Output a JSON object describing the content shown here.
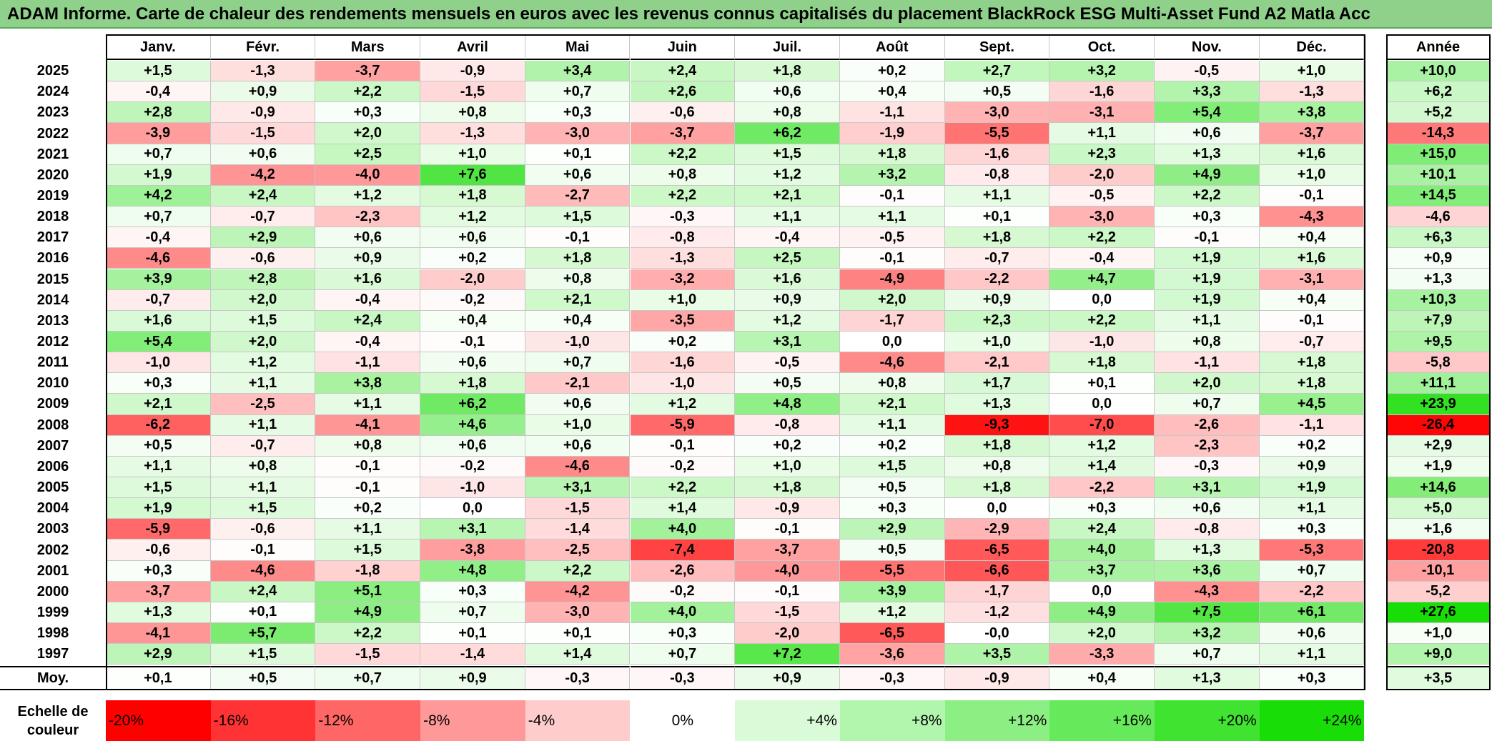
{
  "title": "ADAM Informe. Carte de chaleur des rendements mensuels en euros avec les revenus connus capitalisés du placement BlackRock ESG Multi-Asset Fund A2 Matla Acc",
  "chart_data": {
    "type": "heatmap",
    "title": "ADAM Informe. Carte de chaleur des rendements mensuels en euros avec les revenus connus capitalisés du placement BlackRock ESG Multi-Asset Fund A2 Matla Acc",
    "columns": [
      "Janv.",
      "Févr.",
      "Mars",
      "Avril",
      "Mai",
      "Juin",
      "Juil.",
      "Août",
      "Sept.",
      "Oct.",
      "Nov.",
      "Déc."
    ],
    "year_column_label": "Année",
    "rows": [
      {
        "year": "2025",
        "values": [
          "+1,5",
          "-1,3",
          "-3,7",
          "-0,9",
          "+3,4",
          "+2,4",
          "+1,8",
          "+0,2",
          "+2,7",
          "+3,2",
          "-0,5",
          "+1,0"
        ],
        "annual": "+10,0"
      },
      {
        "year": "2024",
        "values": [
          "-0,4",
          "+0,9",
          "+2,2",
          "-1,5",
          "+0,7",
          "+2,6",
          "+0,6",
          "+0,4",
          "+0,5",
          "-1,6",
          "+3,3",
          "-1,3"
        ],
        "annual": "+6,2"
      },
      {
        "year": "2023",
        "values": [
          "+2,8",
          "-0,9",
          "+0,3",
          "+0,8",
          "+0,3",
          "-0,6",
          "+0,8",
          "-1,1",
          "-3,0",
          "-3,1",
          "+5,4",
          "+3,8"
        ],
        "annual": "+5,2"
      },
      {
        "year": "2022",
        "values": [
          "-3,9",
          "-1,5",
          "+2,0",
          "-1,3",
          "-3,0",
          "-3,7",
          "+6,2",
          "-1,9",
          "-5,5",
          "+1,1",
          "+0,6",
          "-3,7"
        ],
        "annual": "-14,3"
      },
      {
        "year": "2021",
        "values": [
          "+0,7",
          "+0,6",
          "+2,5",
          "+1,0",
          "+0,1",
          "+2,2",
          "+1,5",
          "+1,8",
          "-1,6",
          "+2,3",
          "+1,3",
          "+1,6"
        ],
        "annual": "+15,0"
      },
      {
        "year": "2020",
        "values": [
          "+1,9",
          "-4,2",
          "-4,0",
          "+7,6",
          "+0,6",
          "+0,8",
          "+1,2",
          "+3,2",
          "-0,8",
          "-2,0",
          "+4,9",
          "+1,0"
        ],
        "annual": "+10,1"
      },
      {
        "year": "2019",
        "values": [
          "+4,2",
          "+2,4",
          "+1,2",
          "+1,8",
          "-2,7",
          "+2,2",
          "+2,1",
          "-0,1",
          "+1,1",
          "-0,5",
          "+2,2",
          "-0,1"
        ],
        "annual": "+14,5"
      },
      {
        "year": "2018",
        "values": [
          "+0,7",
          "-0,7",
          "-2,3",
          "+1,2",
          "+1,5",
          "-0,3",
          "+1,1",
          "+1,1",
          "+0,1",
          "-3,0",
          "+0,3",
          "-4,3"
        ],
        "annual": "-4,6"
      },
      {
        "year": "2017",
        "values": [
          "-0,4",
          "+2,9",
          "+0,6",
          "+0,6",
          "-0,1",
          "-0,8",
          "-0,4",
          "-0,5",
          "+1,8",
          "+2,2",
          "-0,1",
          "+0,4"
        ],
        "annual": "+6,3"
      },
      {
        "year": "2016",
        "values": [
          "-4,6",
          "-0,6",
          "+0,9",
          "+0,2",
          "+1,8",
          "-1,3",
          "+2,5",
          "-0,1",
          "-0,7",
          "-0,4",
          "+1,9",
          "+1,6"
        ],
        "annual": "+0,9"
      },
      {
        "year": "2015",
        "values": [
          "+3,9",
          "+2,8",
          "+1,6",
          "-2,0",
          "+0,8",
          "-3,2",
          "+1,6",
          "-4,9",
          "-2,2",
          "+4,7",
          "+1,9",
          "-3,1"
        ],
        "annual": "+1,3"
      },
      {
        "year": "2014",
        "values": [
          "-0,7",
          "+2,0",
          "-0,4",
          "-0,2",
          "+2,1",
          "+1,0",
          "+0,9",
          "+2,0",
          "+0,9",
          "0,0",
          "+1,9",
          "+0,4"
        ],
        "annual": "+10,3"
      },
      {
        "year": "2013",
        "values": [
          "+1,6",
          "+1,5",
          "+2,4",
          "+0,4",
          "+0,4",
          "-3,5",
          "+1,2",
          "-1,7",
          "+2,3",
          "+2,2",
          "+1,1",
          "-0,1"
        ],
        "annual": "+7,9"
      },
      {
        "year": "2012",
        "values": [
          "+5,4",
          "+2,0",
          "-0,4",
          "-0,1",
          "-1,0",
          "+0,2",
          "+3,1",
          "0,0",
          "+1,0",
          "-1,0",
          "+0,8",
          "-0,7"
        ],
        "annual": "+9,5"
      },
      {
        "year": "2011",
        "values": [
          "-1,0",
          "+1,2",
          "-1,1",
          "+0,6",
          "+0,7",
          "-1,6",
          "-0,5",
          "-4,6",
          "-2,1",
          "+1,8",
          "-1,1",
          "+1,8"
        ],
        "annual": "-5,8"
      },
      {
        "year": "2010",
        "values": [
          "+0,3",
          "+1,1",
          "+3,8",
          "+1,8",
          "-2,1",
          "-1,0",
          "+0,5",
          "+0,8",
          "+1,7",
          "+0,1",
          "+2,0",
          "+1,8"
        ],
        "annual": "+11,1"
      },
      {
        "year": "2009",
        "values": [
          "+2,1",
          "-2,5",
          "+1,1",
          "+6,2",
          "+0,6",
          "+1,2",
          "+4,8",
          "+2,1",
          "+1,3",
          "0,0",
          "+0,7",
          "+4,5"
        ],
        "annual": "+23,9"
      },
      {
        "year": "2008",
        "values": [
          "-6,2",
          "+1,1",
          "-4,1",
          "+4,6",
          "+1,0",
          "-5,9",
          "-0,8",
          "+1,1",
          "-9,3",
          "-7,0",
          "-2,6",
          "-1,1"
        ],
        "annual": "-26,4"
      },
      {
        "year": "2007",
        "values": [
          "+0,5",
          "-0,7",
          "+0,8",
          "+0,6",
          "+0,6",
          "-0,1",
          "+0,2",
          "+0,2",
          "+1,8",
          "+1,2",
          "-2,3",
          "+0,2"
        ],
        "annual": "+2,9"
      },
      {
        "year": "2006",
        "values": [
          "+1,1",
          "+0,8",
          "-0,1",
          "-0,2",
          "-4,6",
          "-0,2",
          "+1,0",
          "+1,5",
          "+0,8",
          "+1,4",
          "-0,3",
          "+0,9"
        ],
        "annual": "+1,9"
      },
      {
        "year": "2005",
        "values": [
          "+1,5",
          "+1,1",
          "-0,1",
          "-1,0",
          "+3,1",
          "+2,2",
          "+1,8",
          "+0,5",
          "+1,8",
          "-2,2",
          "+3,1",
          "+1,9"
        ],
        "annual": "+14,6"
      },
      {
        "year": "2004",
        "values": [
          "+1,9",
          "+1,5",
          "+0,2",
          "0,0",
          "-1,5",
          "+1,4",
          "-0,9",
          "+0,3",
          "0,0",
          "+0,3",
          "+0,6",
          "+1,1"
        ],
        "annual": "+5,0"
      },
      {
        "year": "2003",
        "values": [
          "-5,9",
          "-0,6",
          "+1,1",
          "+3,1",
          "-1,4",
          "+4,0",
          "-0,1",
          "+2,9",
          "-2,9",
          "+2,4",
          "-0,8",
          "+0,3"
        ],
        "annual": "+1,6"
      },
      {
        "year": "2002",
        "values": [
          "-0,6",
          "-0,1",
          "+1,5",
          "-3,8",
          "-2,5",
          "-7,4",
          "-3,7",
          "+0,5",
          "-6,5",
          "+4,0",
          "+1,3",
          "-5,3"
        ],
        "annual": "-20,8"
      },
      {
        "year": "2001",
        "values": [
          "+0,3",
          "-4,6",
          "-1,8",
          "+4,8",
          "+2,2",
          "-2,6",
          "-4,0",
          "-5,5",
          "-6,6",
          "+3,7",
          "+3,6",
          "+0,7"
        ],
        "annual": "-10,1"
      },
      {
        "year": "2000",
        "values": [
          "-3,7",
          "+2,4",
          "+5,1",
          "+0,3",
          "-4,2",
          "-0,2",
          "-0,1",
          "+3,9",
          "-1,7",
          "0,0",
          "-4,3",
          "-2,2"
        ],
        "annual": "-5,2"
      },
      {
        "year": "1999",
        "values": [
          "+1,3",
          "+0,1",
          "+4,9",
          "+0,7",
          "-3,0",
          "+4,0",
          "-1,5",
          "+1,2",
          "-1,2",
          "+4,9",
          "+7,5",
          "+6,1"
        ],
        "annual": "+27,6"
      },
      {
        "year": "1998",
        "values": [
          "-4,1",
          "+5,7",
          "+2,2",
          "+0,1",
          "+0,1",
          "+0,3",
          "-2,0",
          "-6,5",
          "-0,0",
          "+2,0",
          "+3,2",
          "+0,6"
        ],
        "annual": "+1,0"
      },
      {
        "year": "1997",
        "values": [
          "+2,9",
          "+1,5",
          "-1,5",
          "-1,4",
          "+1,4",
          "+0,7",
          "+7,2",
          "-3,6",
          "+3,5",
          "-3,3",
          "+0,7",
          "+1,1"
        ],
        "annual": "+9,0"
      }
    ],
    "average": {
      "label": "Moy.",
      "values": [
        "+0,1",
        "+0,5",
        "+0,7",
        "+0,9",
        "-0,3",
        "-0,3",
        "+0,9",
        "-0,3",
        "-0,9",
        "+0,4",
        "+1,3",
        "+0,3"
      ],
      "annual": "+3,5"
    },
    "color_scale": {
      "label": "Echelle de couleur",
      "stops": [
        {
          "label": "-20%",
          "value": -20,
          "color": "#ff0000"
        },
        {
          "label": "-16%",
          "value": -16,
          "color": "#ff3333"
        },
        {
          "label": "-12%",
          "value": -12,
          "color": "#ff6666"
        },
        {
          "label": "-8%",
          "value": -8,
          "color": "#ff9999"
        },
        {
          "label": "-4%",
          "value": -4,
          "color": "#ffcccc"
        },
        {
          "label": "0%",
          "value": 0,
          "color": "#ffffff"
        },
        {
          "label": "+4%",
          "value": 4,
          "color": "#d9fbd7"
        },
        {
          "label": "+8%",
          "value": 8,
          "color": "#b2f5ad"
        },
        {
          "label": "+12%",
          "value": 12,
          "color": "#8cef84"
        },
        {
          "label": "+16%",
          "value": 16,
          "color": "#66e95a"
        },
        {
          "label": "+20%",
          "value": 20,
          "color": "#40e330"
        },
        {
          "label": "+24%",
          "value": 24,
          "color": "#19dd06"
        }
      ]
    }
  }
}
